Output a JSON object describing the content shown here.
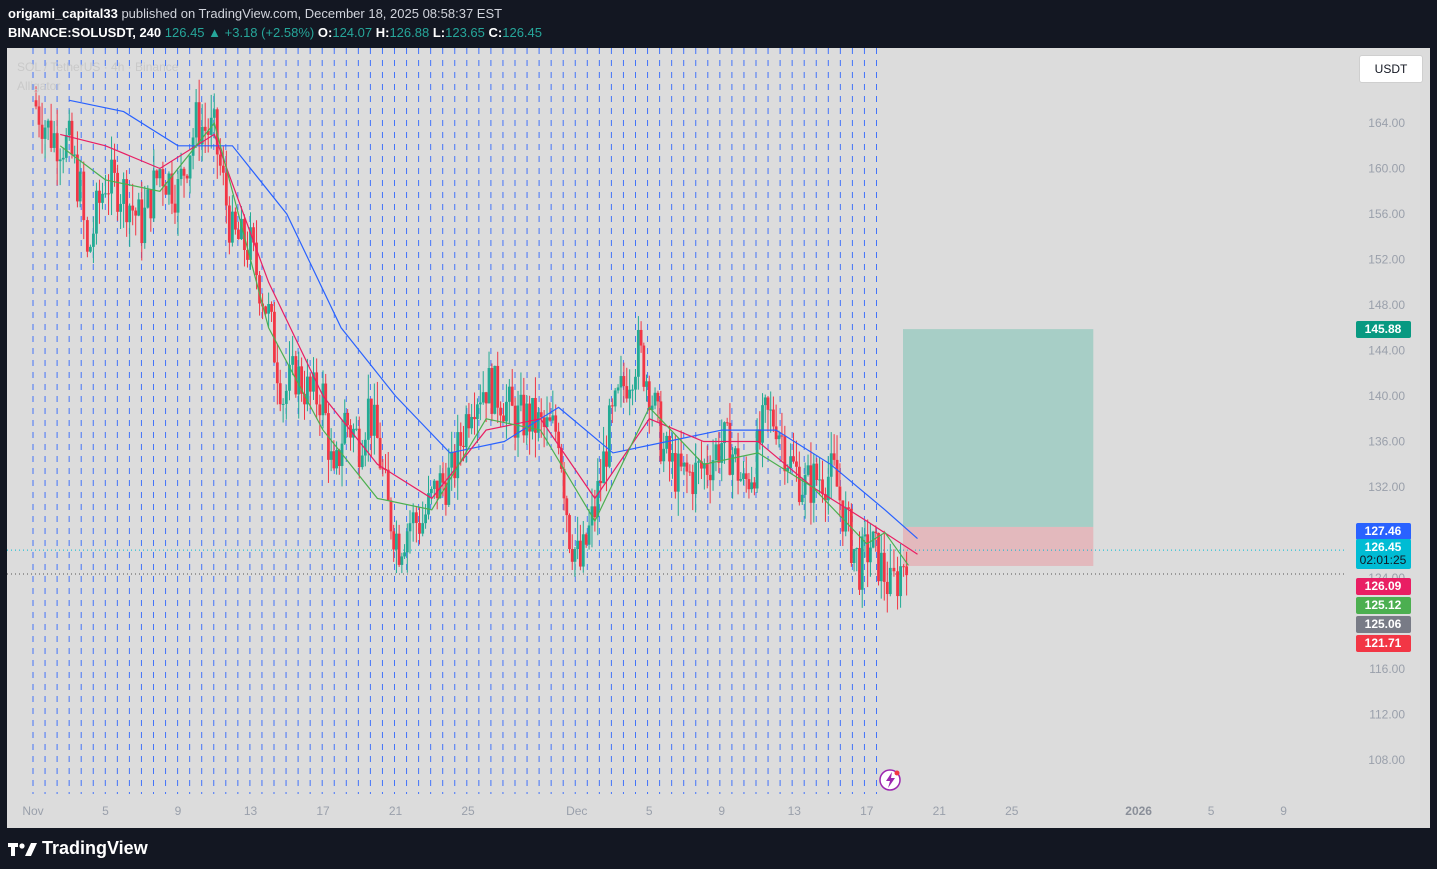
{
  "header": {
    "author": "origami_capital33",
    "published_text": "published on TradingView.com, December 18, 2025 08:58:37 EST",
    "symbol": "BINANCE:SOLUSDT, 240",
    "last": "126.45",
    "change": "▲ +3.18 (+2.58%)",
    "o_label": "O:",
    "o": "124.07",
    "h_label": "H:",
    "h": "126.88",
    "l_label": "L:",
    "l": "123.65",
    "c_label": "C:",
    "c": "126.45"
  },
  "overlay": {
    "legend_symbol": "SOL / TetherUS · 4h · Binance",
    "legend_indicator": "Alligator"
  },
  "currency_button": "USDT",
  "footer": {
    "brand": "TradingView"
  },
  "colors": {
    "up": "#22ab94",
    "down": "#f23645",
    "jaw": "#2962ff",
    "teeth": "#e91e63",
    "lips": "#4caf50",
    "plot_bg": "#dcdcdc",
    "page_bg": "#131722",
    "grid": "#2962ff",
    "target_zone": "#a7cec6",
    "stop_zone": "#e3b9bd"
  },
  "chart_data": {
    "type": "candlestick",
    "title": "SOL / TetherUS · 4h · Binance",
    "indicator": "Alligator",
    "ylim": [
      104.5,
      169
    ],
    "y_ticks": [
      "108.00",
      "112.00",
      "116.00",
      "120.00",
      "124.00",
      "128.00",
      "132.00",
      "136.00",
      "140.00",
      "144.00",
      "148.00",
      "152.00",
      "156.00",
      "160.00",
      "164.00"
    ],
    "x_ticks": [
      {
        "label": "Nov",
        "day": 1
      },
      {
        "label": "5",
        "day": 5
      },
      {
        "label": "9",
        "day": 9
      },
      {
        "label": "13",
        "day": 13
      },
      {
        "label": "17",
        "day": 17
      },
      {
        "label": "21",
        "day": 21
      },
      {
        "label": "25",
        "day": 25
      },
      {
        "label": "Dec",
        "day": 31
      },
      {
        "label": "5",
        "day": 35
      },
      {
        "label": "9",
        "day": 39
      },
      {
        "label": "13",
        "day": 43
      },
      {
        "label": "17",
        "day": 47
      },
      {
        "label": "21",
        "day": 51
      },
      {
        "label": "25",
        "day": 55
      },
      {
        "label": "2026",
        "day": 62
      },
      {
        "label": "5",
        "day": 66
      },
      {
        "label": "9",
        "day": 70
      }
    ],
    "price_scale_labels": [
      {
        "value": 145.88,
        "text": "145.88",
        "color": "#089981"
      },
      {
        "value": 127.46,
        "text": "127.46",
        "color": "#2962ff"
      },
      {
        "value": 126.45,
        "text": "126.45",
        "sub": "02:01:25",
        "color": "#00bcd4"
      },
      {
        "value": 126.09,
        "text": "126.09",
        "color": "#e91e63"
      },
      {
        "value": 125.12,
        "text": "125.12",
        "color": "#4caf50"
      },
      {
        "value": 125.06,
        "text": "125.06",
        "color": "#787b86"
      },
      {
        "value": 121.71,
        "text": "121.71",
        "color": "#f23645"
      }
    ],
    "position_tool": {
      "type": "long",
      "entry": 125.06,
      "target": 145.88,
      "stop": 121.71,
      "start_day": 49.0,
      "end_day": 59.5
    },
    "current_price": 126.45,
    "series_close": [
      {
        "day": 1,
        "close": 166
      },
      {
        "day": 2,
        "close": 163
      },
      {
        "day": 3,
        "close": 162
      },
      {
        "day": 3.6,
        "close": 158
      },
      {
        "day": 4,
        "close": 152
      },
      {
        "day": 4.5,
        "close": 156
      },
      {
        "day": 5,
        "close": 159
      },
      {
        "day": 6,
        "close": 158
      },
      {
        "day": 7,
        "close": 155
      },
      {
        "day": 8,
        "close": 160
      },
      {
        "day": 9,
        "close": 158
      },
      {
        "day": 10,
        "close": 164
      },
      {
        "day": 11,
        "close": 163
      },
      {
        "day": 12,
        "close": 154
      },
      {
        "day": 13,
        "close": 153
      },
      {
        "day": 14,
        "close": 147
      },
      {
        "day": 14.8,
        "close": 140
      },
      {
        "day": 15.5,
        "close": 142
      },
      {
        "day": 16.3,
        "close": 140
      },
      {
        "day": 17,
        "close": 140
      },
      {
        "day": 17.6,
        "close": 132
      },
      {
        "day": 18.2,
        "close": 138
      },
      {
        "day": 19,
        "close": 136
      },
      {
        "day": 19.5,
        "close": 139
      },
      {
        "day": 20,
        "close": 136
      },
      {
        "day": 20.6,
        "close": 130
      },
      {
        "day": 21.2,
        "close": 127
      },
      {
        "day": 21.8,
        "close": 129
      },
      {
        "day": 22.5,
        "close": 129
      },
      {
        "day": 23.3,
        "close": 132
      },
      {
        "day": 24.1,
        "close": 133
      },
      {
        "day": 24.6,
        "close": 136
      },
      {
        "day": 25.2,
        "close": 140
      },
      {
        "day": 26,
        "close": 141
      },
      {
        "day": 26.8,
        "close": 140
      },
      {
        "day": 27.6,
        "close": 138
      },
      {
        "day": 28.4,
        "close": 138
      },
      {
        "day": 29.2,
        "close": 137
      },
      {
        "day": 30,
        "close": 137
      },
      {
        "day": 30.6,
        "close": 128
      },
      {
        "day": 31.2,
        "close": 125
      },
      {
        "day": 32,
        "close": 130
      },
      {
        "day": 32.8,
        "close": 137
      },
      {
        "day": 33.6,
        "close": 141
      },
      {
        "day": 34.4,
        "close": 144
      },
      {
        "day": 35,
        "close": 141
      },
      {
        "day": 35.8,
        "close": 135
      },
      {
        "day": 36.6,
        "close": 133
      },
      {
        "day": 37.4,
        "close": 133
      },
      {
        "day": 38.2,
        "close": 134
      },
      {
        "day": 39,
        "close": 136
      },
      {
        "day": 39.6,
        "close": 135
      },
      {
        "day": 40.2,
        "close": 132
      },
      {
        "day": 40.8,
        "close": 134
      },
      {
        "day": 41.4,
        "close": 138
      },
      {
        "day": 42,
        "close": 138
      },
      {
        "day": 42.8,
        "close": 134
      },
      {
        "day": 43.6,
        "close": 132
      },
      {
        "day": 44.4,
        "close": 133
      },
      {
        "day": 45.2,
        "close": 133
      },
      {
        "day": 46,
        "close": 128
      },
      {
        "day": 46.6,
        "close": 125
      },
      {
        "day": 47.2,
        "close": 127
      },
      {
        "day": 47.8,
        "close": 125
      },
      {
        "day": 48.3,
        "close": 123
      },
      {
        "day": 48.7,
        "close": 124
      },
      {
        "day": 49.2,
        "close": 126.45
      }
    ],
    "series": [
      {
        "name": "Jaw",
        "x": [
          3,
          6,
          9,
          12,
          15,
          18,
          21,
          24,
          27,
          30,
          33,
          36,
          39,
          42,
          45,
          48,
          49.8
        ],
        "values": [
          166,
          165,
          162,
          162,
          156,
          146,
          140,
          135,
          136,
          139,
          135,
          136,
          137,
          137,
          134,
          130,
          127.46
        ]
      },
      {
        "name": "Teeth",
        "x": [
          2.5,
          5,
          8,
          11,
          14,
          17,
          20,
          23,
          26,
          29,
          32,
          35,
          38,
          41,
          44,
          47,
          49.8
        ],
        "values": [
          163,
          162,
          160,
          163,
          150,
          140,
          134,
          131,
          137,
          138,
          131,
          138,
          136,
          136,
          132,
          129,
          126.09
        ]
      },
      {
        "name": "Lips",
        "x": [
          2.5,
          5,
          8,
          11,
          14,
          17,
          20,
          23,
          26,
          29,
          32,
          35,
          38,
          41,
          44,
          47,
          48,
          49.3
        ],
        "values": [
          162,
          159,
          158,
          164,
          146,
          137,
          131,
          130,
          138,
          137,
          129,
          139,
          134,
          135,
          132,
          127,
          128,
          125.12
        ]
      }
    ]
  }
}
